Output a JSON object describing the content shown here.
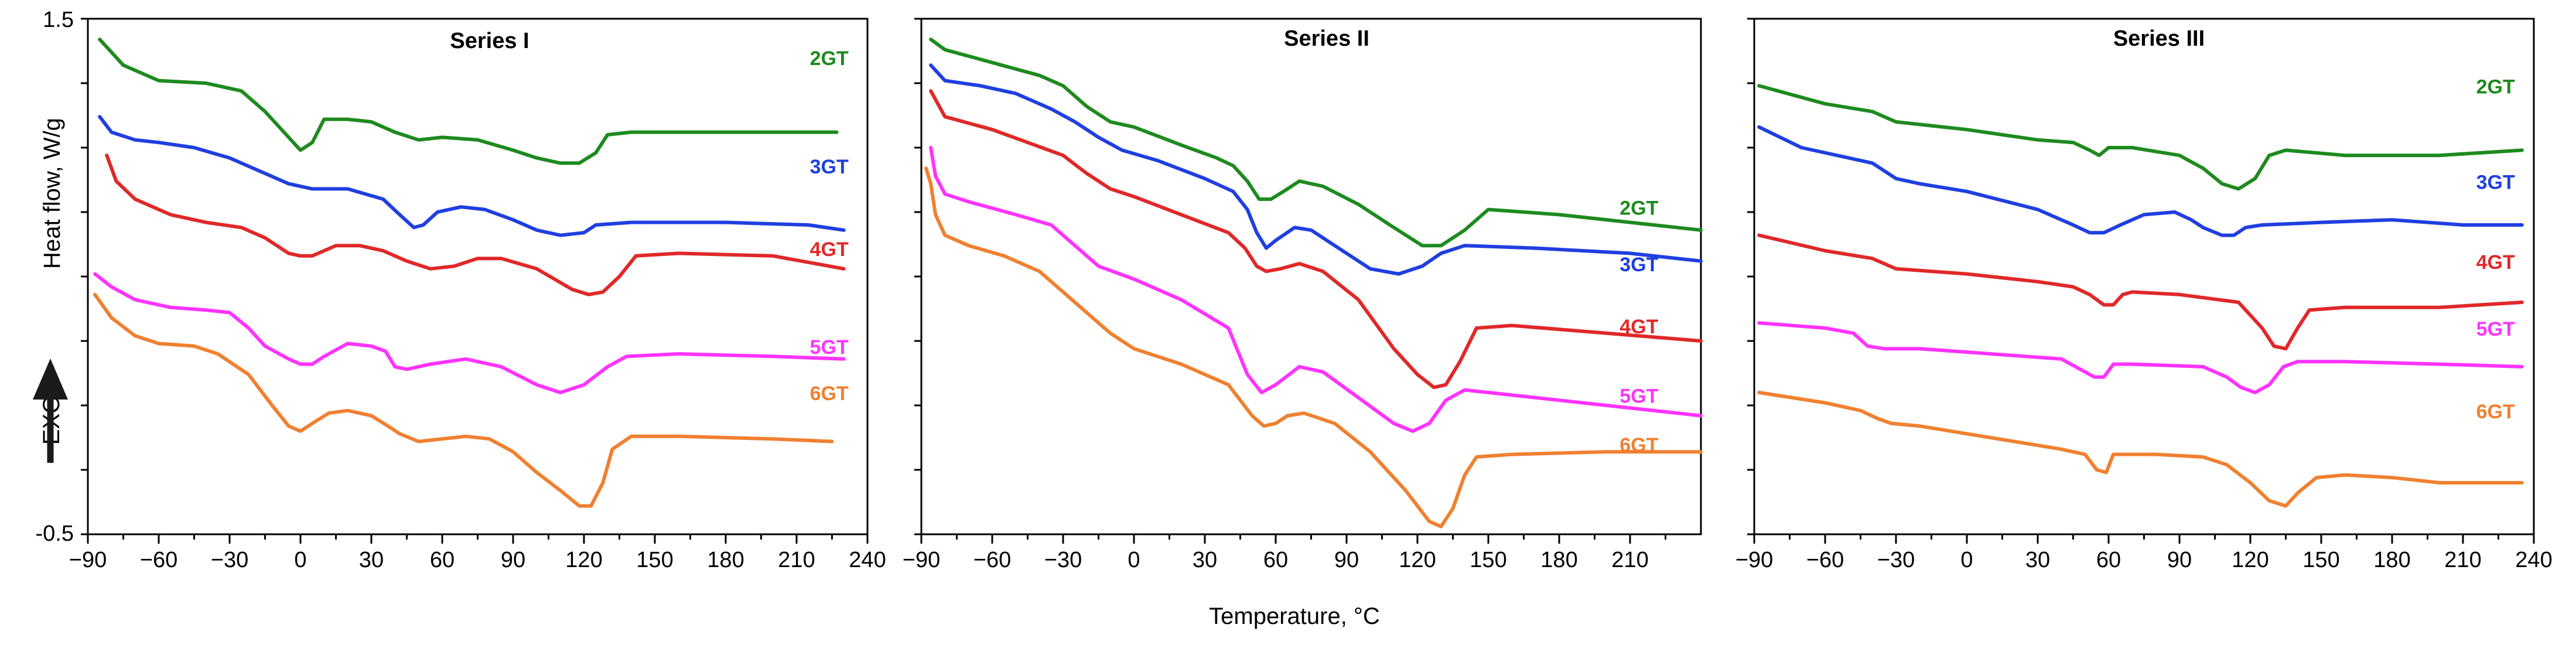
{
  "chart_data": {
    "type": "line",
    "title": "",
    "xlabel": "Temperature, °C",
    "ylabel": "Heat flow, W/g",
    "exo_label": "EXO",
    "ylim": [
      -0.5,
      1.5
    ],
    "y_tick_labels": [
      "1.5",
      "-0.5"
    ],
    "colors": {
      "2GT": "#1e8a1e",
      "3GT": "#1f3fe0",
      "4GT": "#e02828",
      "5GT": "#ff33ff",
      "6GT": "#f08030"
    },
    "panels": [
      {
        "title": "Series I",
        "xlim": [
          -90,
          240
        ],
        "x_ticks": [
          -90,
          -60,
          -30,
          0,
          30,
          60,
          90,
          120,
          150,
          180,
          210,
          240
        ],
        "x_tick_labels": [
          "−90",
          "−60",
          "−30",
          "0",
          "30",
          "60",
          "90",
          "120",
          "150",
          "180",
          "210",
          "240"
        ],
        "series": [
          {
            "name": "2GT",
            "label_pos": [
              232,
              1.32
            ],
            "x": [
              -85,
              -75,
              -60,
              -40,
              -25,
              -15,
              -5,
              0,
              5,
              10,
              20,
              30,
              40,
              50,
              60,
              75,
              90,
              100,
              110,
              118,
              125,
              130,
              140,
              160,
              200,
              227
            ],
            "y": [
              1.42,
              1.32,
              1.26,
              1.25,
              1.22,
              1.14,
              1.04,
              0.99,
              1.02,
              1.11,
              1.11,
              1.1,
              1.06,
              1.03,
              1.04,
              1.03,
              0.99,
              0.96,
              0.94,
              0.94,
              0.98,
              1.05,
              1.06,
              1.06,
              1.06,
              1.06
            ]
          },
          {
            "name": "3GT",
            "label_pos": [
              232,
              0.9
            ],
            "x": [
              -85,
              -80,
              -70,
              -60,
              -45,
              -30,
              -15,
              -5,
              5,
              20,
              35,
              42,
              48,
              52,
              58,
              68,
              78,
              90,
              100,
              110,
              120,
              125,
              140,
              180,
              215,
              230
            ],
            "y": [
              1.12,
              1.06,
              1.03,
              1.02,
              1.0,
              0.96,
              0.9,
              0.86,
              0.84,
              0.84,
              0.8,
              0.74,
              0.69,
              0.7,
              0.75,
              0.77,
              0.76,
              0.72,
              0.68,
              0.66,
              0.67,
              0.7,
              0.71,
              0.71,
              0.7,
              0.68
            ]
          },
          {
            "name": "4GT",
            "label_pos": [
              232,
              0.58
            ],
            "x": [
              -82,
              -78,
              -70,
              -55,
              -40,
              -25,
              -15,
              -5,
              0,
              5,
              15,
              25,
              35,
              45,
              55,
              65,
              75,
              85,
              100,
              115,
              122,
              128,
              135,
              142,
              160,
              200,
              230
            ],
            "y": [
              0.97,
              0.87,
              0.8,
              0.74,
              0.71,
              0.69,
              0.65,
              0.59,
              0.58,
              0.58,
              0.62,
              0.62,
              0.6,
              0.56,
              0.53,
              0.54,
              0.57,
              0.57,
              0.53,
              0.45,
              0.43,
              0.44,
              0.5,
              0.58,
              0.59,
              0.58,
              0.53
            ]
          },
          {
            "name": "5GT",
            "label_pos": [
              232,
              0.2
            ],
            "x": [
              -87,
              -80,
              -70,
              -55,
              -40,
              -30,
              -22,
              -15,
              -5,
              0,
              5,
              10,
              20,
              30,
              36,
              40,
              45,
              55,
              70,
              85,
              100,
              110,
              120,
              130,
              138,
              160,
              200,
              230
            ],
            "y": [
              0.51,
              0.46,
              0.41,
              0.38,
              0.37,
              0.36,
              0.3,
              0.23,
              0.18,
              0.16,
              0.16,
              0.19,
              0.24,
              0.23,
              0.21,
              0.15,
              0.14,
              0.16,
              0.18,
              0.15,
              0.08,
              0.05,
              0.08,
              0.15,
              0.19,
              0.2,
              0.19,
              0.18
            ]
          },
          {
            "name": "6GT",
            "label_pos": [
              232,
              0.02
            ],
            "x": [
              -87,
              -80,
              -70,
              -60,
              -45,
              -35,
              -22,
              -12,
              -5,
              0,
              5,
              12,
              20,
              30,
              37,
              42,
              50,
              60,
              70,
              80,
              90,
              100,
              110,
              118,
              123,
              128,
              132,
              140,
              160,
              200,
              225
            ],
            "y": [
              0.43,
              0.34,
              0.27,
              0.24,
              0.23,
              0.2,
              0.12,
              0.0,
              -0.08,
              -0.1,
              -0.07,
              -0.03,
              -0.02,
              -0.04,
              -0.08,
              -0.11,
              -0.14,
              -0.13,
              -0.12,
              -0.13,
              -0.18,
              -0.26,
              -0.33,
              -0.39,
              -0.39,
              -0.3,
              -0.17,
              -0.12,
              -0.12,
              -0.13,
              -0.14
            ]
          }
        ]
      },
      {
        "title": "Series II",
        "xlim": [
          -90,
          240
        ],
        "x_ticks": [
          -90,
          -60,
          -30,
          0,
          30,
          60,
          90,
          120,
          150,
          180,
          210
        ],
        "x_tick_labels": [
          "−90",
          "−60",
          "−30",
          "0",
          "30",
          "60",
          "90",
          "120",
          "150",
          "180",
          "210"
        ],
        "series": [
          {
            "name": "2GT",
            "label_pos": [
              222,
              0.74
            ],
            "x": [
              -86,
              -80,
              -60,
              -40,
              -30,
              -20,
              -10,
              0,
              20,
              35,
              42,
              48,
              53,
              58,
              65,
              70,
              80,
              95,
              110,
              122,
              130,
              140,
              150,
              180,
              210,
              240
            ],
            "y": [
              1.42,
              1.38,
              1.33,
              1.28,
              1.24,
              1.16,
              1.1,
              1.08,
              1.01,
              0.96,
              0.93,
              0.87,
              0.8,
              0.8,
              0.84,
              0.87,
              0.85,
              0.78,
              0.69,
              0.62,
              0.62,
              0.68,
              0.76,
              0.74,
              0.71,
              0.68
            ]
          },
          {
            "name": "3GT",
            "label_pos": [
              222,
              0.52
            ],
            "x": [
              -86,
              -80,
              -65,
              -50,
              -35,
              -25,
              -15,
              -5,
              10,
              30,
              42,
              48,
              52,
              56,
              60,
              68,
              75,
              85,
              100,
              112,
              122,
              130,
              140,
              170,
              210,
              240
            ],
            "y": [
              1.32,
              1.26,
              1.24,
              1.21,
              1.15,
              1.1,
              1.04,
              0.99,
              0.95,
              0.88,
              0.83,
              0.76,
              0.67,
              0.61,
              0.64,
              0.69,
              0.68,
              0.62,
              0.53,
              0.51,
              0.54,
              0.59,
              0.62,
              0.61,
              0.59,
              0.56
            ]
          },
          {
            "name": "4GT",
            "label_pos": [
              222,
              0.28
            ],
            "x": [
              -86,
              -80,
              -60,
              -45,
              -30,
              -20,
              -10,
              0,
              20,
              40,
              47,
              52,
              56,
              62,
              70,
              80,
              95,
              110,
              120,
              127,
              132,
              138,
              145,
              160,
              200,
              240
            ],
            "y": [
              1.22,
              1.12,
              1.07,
              1.02,
              0.97,
              0.9,
              0.84,
              0.81,
              0.74,
              0.67,
              0.61,
              0.54,
              0.52,
              0.53,
              0.55,
              0.52,
              0.41,
              0.22,
              0.12,
              0.07,
              0.08,
              0.17,
              0.3,
              0.31,
              0.28,
              0.25
            ]
          },
          {
            "name": "5GT",
            "label_pos": [
              222,
              0.01
            ],
            "x": [
              -86,
              -84,
              -80,
              -70,
              -50,
              -35,
              -25,
              -15,
              0,
              20,
              40,
              48,
              54,
              60,
              70,
              80,
              95,
              110,
              118,
              125,
              132,
              140,
              160,
              200,
              240
            ],
            "y": [
              1.0,
              0.89,
              0.82,
              0.79,
              0.74,
              0.7,
              0.62,
              0.54,
              0.49,
              0.41,
              0.3,
              0.12,
              0.05,
              0.08,
              0.15,
              0.13,
              0.03,
              -0.07,
              -0.1,
              -0.07,
              0.02,
              0.06,
              0.04,
              0.0,
              -0.04
            ]
          },
          {
            "name": "6GT",
            "label_pos": [
              222,
              -0.18
            ],
            "x": [
              -88,
              -86,
              -84,
              -80,
              -70,
              -55,
              -40,
              -30,
              -20,
              -10,
              0,
              20,
              40,
              50,
              55,
              60,
              65,
              72,
              85,
              100,
              115,
              125,
              130,
              135,
              140,
              145,
              160,
              200,
              240
            ],
            "y": [
              0.92,
              0.86,
              0.74,
              0.66,
              0.62,
              0.58,
              0.52,
              0.44,
              0.36,
              0.28,
              0.22,
              0.16,
              0.08,
              -0.04,
              -0.08,
              -0.07,
              -0.04,
              -0.03,
              -0.07,
              -0.18,
              -0.33,
              -0.45,
              -0.47,
              -0.4,
              -0.27,
              -0.2,
              -0.19,
              -0.18,
              -0.18
            ]
          }
        ]
      },
      {
        "title": "Series III",
        "xlim": [
          -90,
          240
        ],
        "x_ticks": [
          -90,
          -60,
          -30,
          0,
          30,
          60,
          90,
          120,
          150,
          180,
          210,
          240
        ],
        "x_tick_labels": [
          "−90",
          "−60",
          "−30",
          "0",
          "30",
          "60",
          "90",
          "120",
          "150",
          "180",
          "210",
          "240"
        ],
        "series": [
          {
            "name": "2GT",
            "label_pos": [
              232,
              1.21
            ],
            "x": [
              -88,
              -60,
              -40,
              -30,
              0,
              30,
              45,
              52,
              56,
              60,
              70,
              90,
              100,
              108,
              115,
              122,
              128,
              135,
              160,
              200,
              235
            ],
            "y": [
              1.24,
              1.17,
              1.14,
              1.1,
              1.07,
              1.03,
              1.02,
              0.99,
              0.97,
              1.0,
              1.0,
              0.97,
              0.92,
              0.86,
              0.84,
              0.88,
              0.97,
              0.99,
              0.97,
              0.97,
              0.99
            ]
          },
          {
            "name": "3GT",
            "label_pos": [
              232,
              0.84
            ],
            "x": [
              -88,
              -70,
              -50,
              -40,
              -30,
              -20,
              0,
              30,
              45,
              52,
              58,
              65,
              75,
              88,
              95,
              100,
              108,
              113,
              118,
              125,
              150,
              180,
              210,
              235
            ],
            "y": [
              1.08,
              1.0,
              0.96,
              0.94,
              0.88,
              0.86,
              0.83,
              0.76,
              0.7,
              0.67,
              0.67,
              0.7,
              0.74,
              0.75,
              0.72,
              0.69,
              0.66,
              0.66,
              0.69,
              0.7,
              0.71,
              0.72,
              0.7,
              0.7
            ]
          },
          {
            "name": "4GT",
            "label_pos": [
              232,
              0.53
            ],
            "x": [
              -88,
              -60,
              -40,
              -30,
              0,
              30,
              45,
              52,
              58,
              62,
              66,
              70,
              90,
              115,
              125,
              130,
              135,
              140,
              145,
              160,
              200,
              235
            ],
            "y": [
              0.66,
              0.6,
              0.57,
              0.53,
              0.51,
              0.48,
              0.46,
              0.43,
              0.39,
              0.39,
              0.43,
              0.44,
              0.43,
              0.4,
              0.3,
              0.23,
              0.22,
              0.3,
              0.37,
              0.38,
              0.38,
              0.4
            ]
          },
          {
            "name": "5GT",
            "label_pos": [
              232,
              0.27
            ],
            "x": [
              -88,
              -60,
              -48,
              -42,
              -35,
              -20,
              10,
              40,
              48,
              54,
              58,
              62,
              70,
              100,
              110,
              116,
              122,
              128,
              134,
              140,
              160,
              200,
              235
            ],
            "y": [
              0.32,
              0.3,
              0.28,
              0.23,
              0.22,
              0.22,
              0.2,
              0.18,
              0.14,
              0.11,
              0.11,
              0.16,
              0.16,
              0.15,
              0.11,
              0.07,
              0.05,
              0.08,
              0.15,
              0.17,
              0.17,
              0.16,
              0.15
            ]
          },
          {
            "name": "6GT",
            "label_pos": [
              232,
              -0.05
            ],
            "x": [
              -88,
              -60,
              -45,
              -38,
              -32,
              -20,
              0,
              20,
              40,
              50,
              55,
              59,
              62,
              66,
              80,
              100,
              110,
              120,
              128,
              135,
              140,
              148,
              160,
              180,
              200,
              235
            ],
            "y": [
              0.05,
              0.01,
              -0.02,
              -0.05,
              -0.07,
              -0.08,
              -0.11,
              -0.14,
              -0.17,
              -0.19,
              -0.25,
              -0.26,
              -0.19,
              -0.19,
              -0.19,
              -0.2,
              -0.23,
              -0.3,
              -0.37,
              -0.39,
              -0.34,
              -0.28,
              -0.27,
              -0.28,
              -0.3,
              -0.3
            ]
          }
        ]
      }
    ]
  }
}
